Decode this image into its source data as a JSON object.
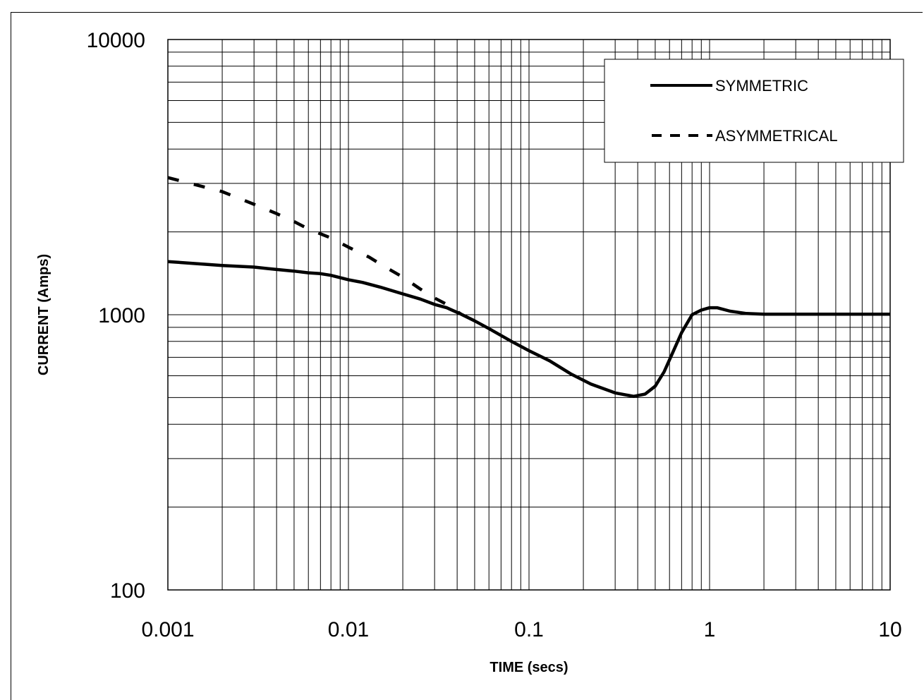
{
  "chart_data": {
    "type": "line",
    "xlabel": "TIME (secs)",
    "ylabel": "CURRENT (Amps)",
    "x_scale": "log",
    "y_scale": "log",
    "xlim": [
      0.001,
      10
    ],
    "ylim": [
      100,
      10000
    ],
    "x_ticks": [
      "0.001",
      "0.01",
      "0.1",
      "1",
      "10"
    ],
    "y_ticks": [
      "100",
      "1000",
      "10000"
    ],
    "grid": true,
    "legend_position": "top-right",
    "series": [
      {
        "name": "SYMMETRIC",
        "style": "solid",
        "color": "#000000",
        "x": [
          0.001,
          0.002,
          0.003,
          0.004,
          0.005,
          0.006,
          0.007,
          0.008,
          0.01,
          0.012,
          0.015,
          0.02,
          0.025,
          0.03,
          0.035,
          0.042,
          0.05,
          0.06,
          0.08,
          0.1,
          0.13,
          0.17,
          0.22,
          0.3,
          0.38,
          0.44,
          0.5,
          0.56,
          0.62,
          0.7,
          0.8,
          0.9,
          1.0,
          1.1,
          1.3,
          1.6,
          2,
          3,
          5,
          10
        ],
        "y": [
          1560,
          1510,
          1490,
          1460,
          1440,
          1420,
          1410,
          1390,
          1340,
          1310,
          1260,
          1190,
          1140,
          1090,
          1060,
          1005,
          950,
          890,
          800,
          740,
          680,
          610,
          560,
          520,
          505,
          515,
          550,
          620,
          720,
          860,
          1000,
          1040,
          1060,
          1060,
          1030,
          1010,
          1005,
          1005,
          1005,
          1005
        ]
      },
      {
        "name": "ASYMMETRICAL",
        "style": "dashed",
        "color": "#000000",
        "x": [
          0.001,
          0.002,
          0.003,
          0.004,
          0.005,
          0.006,
          0.008,
          0.01,
          0.013,
          0.016,
          0.02,
          0.025,
          0.03,
          0.036,
          0.042
        ],
        "y": [
          3150,
          2800,
          2520,
          2330,
          2180,
          2050,
          1900,
          1760,
          1620,
          1490,
          1370,
          1240,
          1150,
          1080,
          1005
        ]
      }
    ]
  }
}
